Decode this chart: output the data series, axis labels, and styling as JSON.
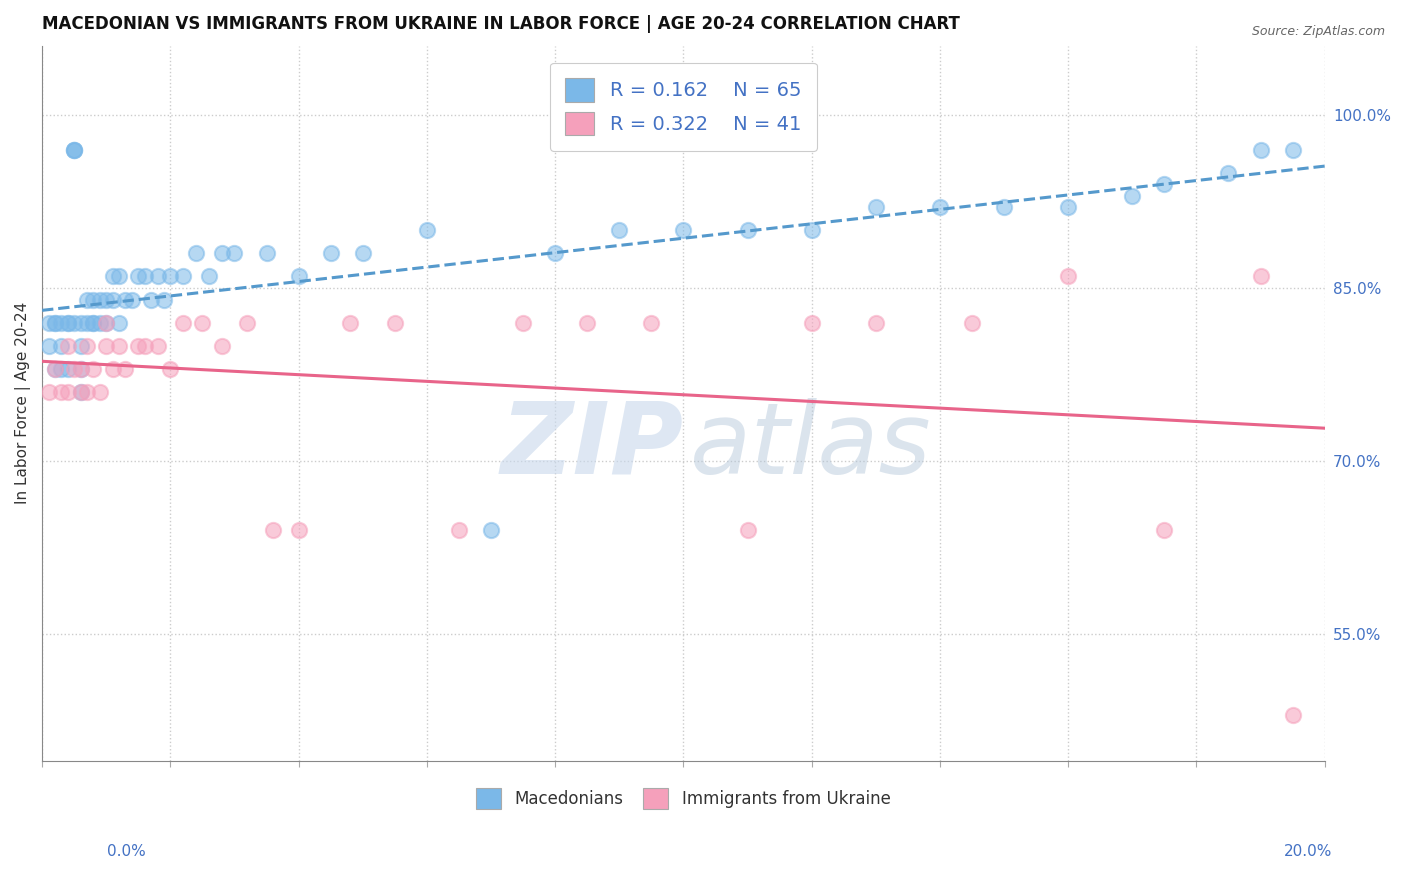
{
  "title": "MACEDONIAN VS IMMIGRANTS FROM UKRAINE IN LABOR FORCE | AGE 20-24 CORRELATION CHART",
  "source": "Source: ZipAtlas.com",
  "ylabel": "In Labor Force | Age 20-24",
  "ytick_vals": [
    0.55,
    0.7,
    0.85,
    1.0
  ],
  "xmin": 0.0,
  "xmax": 0.2,
  "ymin": 0.44,
  "ymax": 1.06,
  "legend_R1": "R = 0.162",
  "legend_N1": "N = 65",
  "legend_R2": "R = 0.322",
  "legend_N2": "N = 41",
  "blue_color": "#7bb8e8",
  "pink_color": "#f5a0bb",
  "blue_trend_color": "#5599cc",
  "pink_trend_color": "#e8648a",
  "grid_color": "#cccccc",
  "background_color": "#ffffff",
  "title_fontsize": 12,
  "axis_label_fontsize": 11,
  "tick_fontsize": 11,
  "legend_fontsize": 14,
  "blue_scatter_x": [
    0.001,
    0.001,
    0.002,
    0.002,
    0.002,
    0.003,
    0.003,
    0.003,
    0.004,
    0.004,
    0.004,
    0.005,
    0.005,
    0.005,
    0.005,
    0.006,
    0.006,
    0.006,
    0.006,
    0.007,
    0.007,
    0.008,
    0.008,
    0.008,
    0.009,
    0.009,
    0.01,
    0.01,
    0.011,
    0.011,
    0.012,
    0.012,
    0.013,
    0.014,
    0.015,
    0.016,
    0.017,
    0.018,
    0.019,
    0.02,
    0.022,
    0.024,
    0.026,
    0.028,
    0.03,
    0.035,
    0.04,
    0.045,
    0.05,
    0.06,
    0.07,
    0.08,
    0.09,
    0.1,
    0.11,
    0.12,
    0.13,
    0.14,
    0.15,
    0.16,
    0.17,
    0.175,
    0.185,
    0.19,
    0.195
  ],
  "blue_scatter_y": [
    0.82,
    0.8,
    0.82,
    0.82,
    0.78,
    0.82,
    0.8,
    0.78,
    0.82,
    0.82,
    0.78,
    0.97,
    0.97,
    0.97,
    0.82,
    0.82,
    0.8,
    0.78,
    0.76,
    0.82,
    0.84,
    0.82,
    0.84,
    0.82,
    0.82,
    0.84,
    0.82,
    0.84,
    0.84,
    0.86,
    0.82,
    0.86,
    0.84,
    0.84,
    0.86,
    0.86,
    0.84,
    0.86,
    0.84,
    0.86,
    0.86,
    0.88,
    0.86,
    0.88,
    0.88,
    0.88,
    0.86,
    0.88,
    0.88,
    0.9,
    0.64,
    0.88,
    0.9,
    0.9,
    0.9,
    0.9,
    0.92,
    0.92,
    0.92,
    0.92,
    0.93,
    0.94,
    0.95,
    0.97,
    0.97
  ],
  "pink_scatter_x": [
    0.001,
    0.002,
    0.003,
    0.004,
    0.004,
    0.005,
    0.006,
    0.006,
    0.007,
    0.007,
    0.008,
    0.009,
    0.01,
    0.01,
    0.011,
    0.012,
    0.013,
    0.015,
    0.016,
    0.018,
    0.02,
    0.022,
    0.025,
    0.028,
    0.032,
    0.036,
    0.04,
    0.048,
    0.055,
    0.065,
    0.075,
    0.085,
    0.095,
    0.11,
    0.12,
    0.13,
    0.145,
    0.16,
    0.175,
    0.19,
    0.195
  ],
  "pink_scatter_y": [
    0.76,
    0.78,
    0.76,
    0.76,
    0.8,
    0.78,
    0.78,
    0.76,
    0.76,
    0.8,
    0.78,
    0.76,
    0.8,
    0.82,
    0.78,
    0.8,
    0.78,
    0.8,
    0.8,
    0.8,
    0.78,
    0.82,
    0.82,
    0.8,
    0.82,
    0.64,
    0.64,
    0.82,
    0.82,
    0.64,
    0.82,
    0.82,
    0.82,
    0.64,
    0.82,
    0.82,
    0.82,
    0.86,
    0.64,
    0.86,
    0.48
  ]
}
